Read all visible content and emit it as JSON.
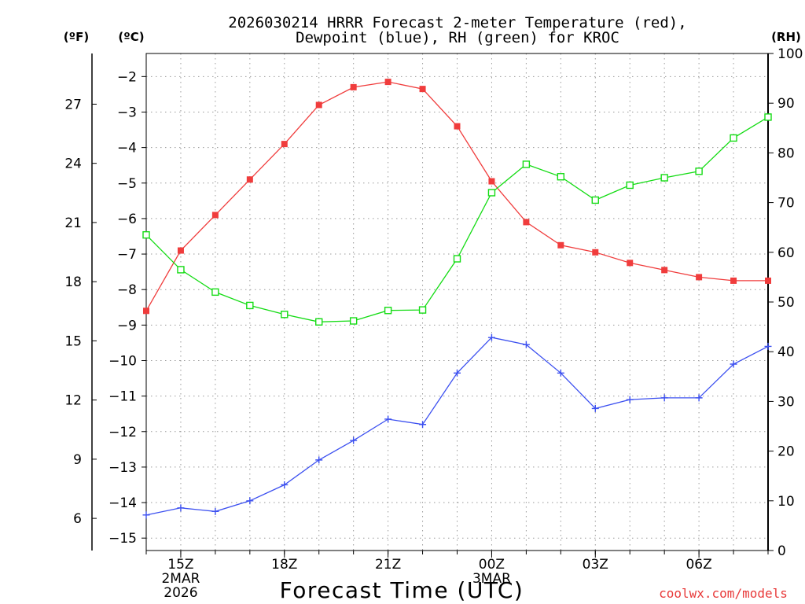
{
  "chart_data": {
    "type": "line",
    "title_lines": [
      "2026030214 HRRR Forecast 2-meter Temperature (red),",
      "Dewpoint (blue), RH (green) for KROC"
    ],
    "xlabel": "Forecast Time (UTC)",
    "watermark": "coolwx.com/models",
    "units": {
      "fahrenheit": "(ºF)",
      "celsius": "(ºC)",
      "rh": "(RH)"
    },
    "x_hours": [
      14,
      15,
      16,
      17,
      18,
      19,
      20,
      21,
      22,
      23,
      24,
      25,
      26,
      27,
      28,
      29,
      30,
      31,
      32
    ],
    "xlim": [
      14,
      32
    ],
    "x_ticks": [
      {
        "hour": 15,
        "label": "15Z",
        "sublabel": "2MAR",
        "sublabel2": "2026"
      },
      {
        "hour": 18,
        "label": "18Z",
        "sublabel": "",
        "sublabel2": ""
      },
      {
        "hour": 21,
        "label": "21Z",
        "sublabel": "",
        "sublabel2": ""
      },
      {
        "hour": 24,
        "label": "00Z",
        "sublabel": "3MAR",
        "sublabel2": ""
      },
      {
        "hour": 27,
        "label": "03Z",
        "sublabel": "",
        "sublabel2": ""
      },
      {
        "hour": 30,
        "label": "06Z",
        "sublabel": "",
        "sublabel2": ""
      }
    ],
    "celsius_axis": {
      "range": [
        -15.35,
        -1.35
      ],
      "ticks": [
        -2,
        -3,
        -4,
        -5,
        -6,
        -7,
        -8,
        -9,
        -10,
        -11,
        -12,
        -13,
        -14,
        -15
      ]
    },
    "fahrenheit_ticks": [
      27,
      24,
      21,
      18,
      15,
      12,
      9,
      6
    ],
    "rh_axis": {
      "range": [
        0,
        100
      ],
      "ticks": [
        0,
        10,
        20,
        30,
        40,
        50,
        60,
        70,
        80,
        90,
        100
      ]
    },
    "series": [
      {
        "name": "Temperature",
        "unit": "C",
        "color": "#f03c3c",
        "marker": "filled-square",
        "values": [
          -8.6,
          -6.9,
          -5.9,
          -4.9,
          -3.9,
          -2.8,
          -2.3,
          -2.15,
          -2.35,
          -3.4,
          -4.95,
          -6.1,
          -6.75,
          -6.95,
          -7.25,
          -7.45,
          -7.65,
          -7.75,
          -7.75
        ]
      },
      {
        "name": "Dewpoint",
        "unit": "C",
        "color": "#3c50f0",
        "marker": "plus",
        "values": [
          -14.35,
          -14.15,
          -14.25,
          -13.95,
          -13.5,
          -12.8,
          -12.25,
          -11.65,
          -11.8,
          -10.35,
          -9.35,
          -9.55,
          -10.35,
          -11.35,
          -11.1,
          -11.05,
          -11.05,
          -10.1,
          -9.6
        ]
      },
      {
        "name": "RH",
        "unit": "%",
        "color": "#14dc14",
        "marker": "open-square",
        "values": [
          63.5,
          56.5,
          52,
          49.3,
          47.5,
          46,
          46.2,
          48.3,
          48.4,
          58.7,
          72,
          77.7,
          75.2,
          70.5,
          73.5,
          75,
          76.3,
          83,
          87.2
        ]
      }
    ]
  }
}
